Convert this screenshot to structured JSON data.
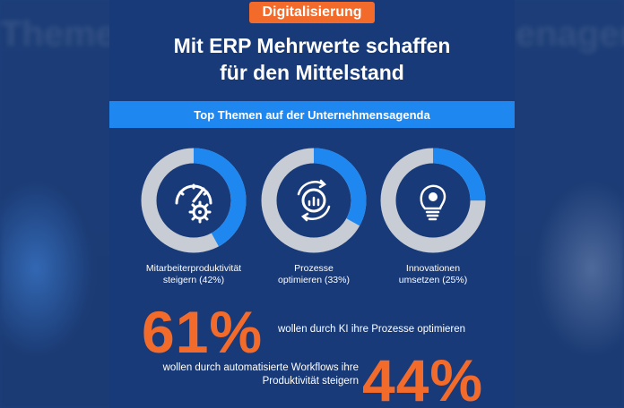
{
  "tag": "Digitalisierung",
  "headline": [
    "Mit ERP Mehrwerte schaffen",
    "für den Mittelstand"
  ],
  "banner": "Top Themen auf der Unternehmensagenda",
  "background_ghost_text": [
    "Themen",
    "enagenda"
  ],
  "colors": {
    "orange": "#f36b2b",
    "blue_accent": "#1f87f0",
    "navy": "#183a78",
    "ring_gray": "#c8ccd4"
  },
  "topics": [
    {
      "label_lines": [
        "Mitarbeiterproduktivität",
        "steigern (42%)"
      ],
      "percent": 42,
      "icon": "gauge-gear-icon"
    },
    {
      "label_lines": [
        "Prozesse",
        "optimieren (33%)"
      ],
      "percent": 33,
      "icon": "process-chart-icon"
    },
    {
      "label_lines": [
        "Innovationen",
        "umsetzen (25%)"
      ],
      "percent": 25,
      "icon": "lightbulb-gear-icon"
    }
  ],
  "stats": [
    {
      "value": "61%",
      "text_lines": [
        "wollen durch KI ihre Prozesse optimieren"
      ]
    },
    {
      "value": "44%",
      "text_lines": [
        "wollen durch automatisierte Workflows ihre",
        "Produktivität steigern"
      ]
    }
  ]
}
